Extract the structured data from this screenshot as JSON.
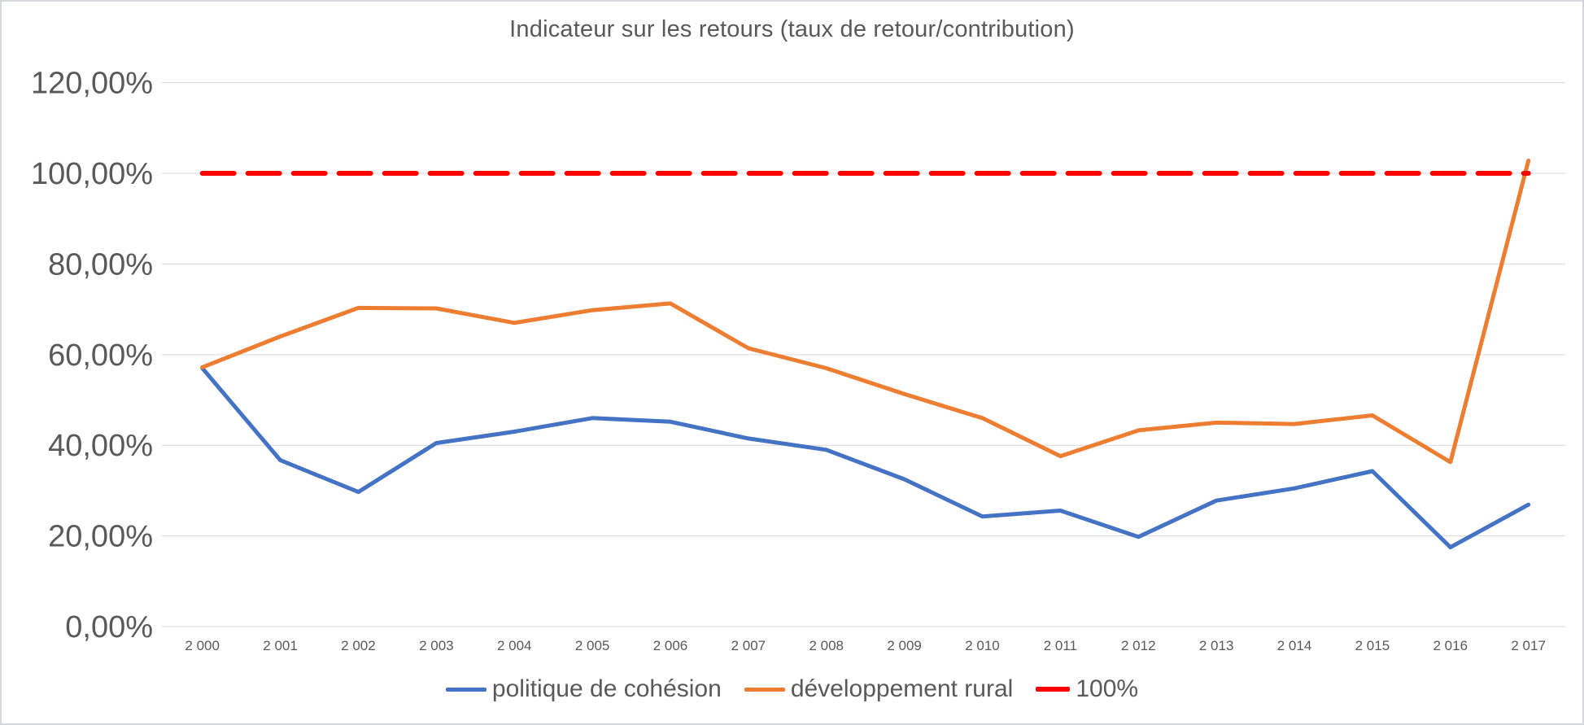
{
  "chart_data": {
    "type": "line",
    "title": "Indicateur sur les retours (taux de retour/contribution)",
    "categories": [
      "2 000",
      "2 001",
      "2 002",
      "2 003",
      "2 004",
      "2 005",
      "2 006",
      "2 007",
      "2 008",
      "2 009",
      "2 010",
      "2 011",
      "2 012",
      "2 013",
      "2 014",
      "2 015",
      "2 016",
      "2 017"
    ],
    "series": [
      {
        "name": "politique de cohésion",
        "color": "#4472C4",
        "style": "solid",
        "values": [
          57.0,
          36.7,
          29.7,
          40.5,
          43.0,
          46.0,
          45.2,
          41.5,
          39.0,
          32.5,
          24.3,
          25.6,
          19.8,
          27.8,
          30.5,
          34.3,
          17.5,
          26.9
        ]
      },
      {
        "name": "développement rural",
        "color": "#ED7D31",
        "style": "solid",
        "values": [
          57.2,
          64.0,
          70.3,
          70.2,
          67.0,
          69.8,
          71.3,
          61.4,
          57.0,
          51.3,
          46.0,
          37.6,
          43.3,
          45.0,
          44.7,
          46.6,
          36.3,
          102.8
        ]
      },
      {
        "name": "100%",
        "color": "#FF0000",
        "style": "dashed",
        "values": [
          100,
          100,
          100,
          100,
          100,
          100,
          100,
          100,
          100,
          100,
          100,
          100,
          100,
          100,
          100,
          100,
          100,
          100
        ]
      }
    ],
    "y_ticks": [
      {
        "value": 0,
        "label": "0,00%"
      },
      {
        "value": 20,
        "label": "20,00%"
      },
      {
        "value": 40,
        "label": "40,00%"
      },
      {
        "value": 60,
        "label": "60,00%"
      },
      {
        "value": 80,
        "label": "80,00%"
      },
      {
        "value": 100,
        "label": "100,00%"
      },
      {
        "value": 120,
        "label": "120,00%"
      }
    ],
    "ylim": [
      0,
      120
    ],
    "grid": true,
    "legend_position": "bottom",
    "text_color": "#595959",
    "tick_label_color": "#595959",
    "gridline_color": "#D9D9D9"
  }
}
